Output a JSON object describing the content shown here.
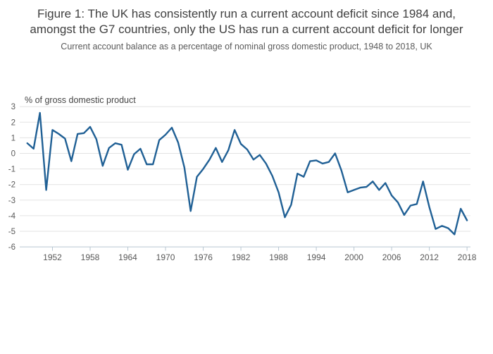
{
  "header": {
    "title": "Figure 1: The UK has consistently run a current account deficit since 1984 and, amongst the G7 countries, only the US has run a current account deficit for longer",
    "subtitle": "Current account balance as a percentage of nominal gross domestic product, 1948 to 2018, UK"
  },
  "chart_data": {
    "type": "line",
    "title": "Figure 1: The UK has consistently run a current account deficit since 1984 and, amongst the G7 countries, only the US has run a current account deficit for longer",
    "subtitle": "Current account balance as a percentage of nominal gross domestic product, 1948 to 2018, UK",
    "axis_title": "% of gross domestic product",
    "series_name": "UK current account balance as % of nominal GDP",
    "x": [
      1948,
      1949,
      1950,
      1951,
      1952,
      1953,
      1954,
      1955,
      1956,
      1957,
      1958,
      1959,
      1960,
      1961,
      1962,
      1963,
      1964,
      1965,
      1966,
      1967,
      1968,
      1969,
      1970,
      1971,
      1972,
      1973,
      1974,
      1975,
      1976,
      1977,
      1978,
      1979,
      1980,
      1981,
      1982,
      1983,
      1984,
      1985,
      1986,
      1987,
      1988,
      1989,
      1990,
      1991,
      1992,
      1993,
      1994,
      1995,
      1996,
      1997,
      1998,
      1999,
      2000,
      2001,
      2002,
      2003,
      2004,
      2005,
      2006,
      2007,
      2008,
      2009,
      2010,
      2011,
      2012,
      2013,
      2014,
      2015,
      2016,
      2017,
      2018
    ],
    "values": [
      0.65,
      0.3,
      2.6,
      -2.35,
      1.5,
      1.25,
      0.95,
      -0.5,
      1.25,
      1.3,
      1.7,
      0.9,
      -0.8,
      0.35,
      0.65,
      0.55,
      -1.05,
      -0.05,
      0.3,
      -0.7,
      -0.7,
      0.85,
      1.2,
      1.65,
      0.7,
      -0.9,
      -3.7,
      -1.5,
      -1.0,
      -0.4,
      0.35,
      -0.55,
      0.2,
      1.5,
      0.6,
      0.25,
      -0.4,
      -0.1,
      -0.65,
      -1.45,
      -2.5,
      -4.1,
      -3.3,
      -1.3,
      -1.5,
      -0.5,
      -0.45,
      -0.65,
      -0.55,
      0.0,
      -1.1,
      -2.5,
      -2.35,
      -2.2,
      -2.15,
      -1.8,
      -2.35,
      -1.9,
      -2.7,
      -3.15,
      -3.95,
      -3.35,
      -3.25,
      -1.8,
      -3.45,
      -4.85,
      -4.65,
      -4.8,
      -5.2,
      -3.55,
      -4.3
    ],
    "ylim": [
      -6,
      3
    ],
    "yticks": [
      3,
      2,
      1,
      0,
      -1,
      -2,
      -3,
      -4,
      -5,
      -6
    ],
    "xticks": [
      1952,
      1958,
      1964,
      1970,
      1976,
      1982,
      1988,
      1994,
      2000,
      2006,
      2012,
      2018
    ],
    "grid": "horizontal",
    "legend": "none",
    "colors": {
      "line": "#206095",
      "grid": "#e3e3e3",
      "axis": "#b9c7d2",
      "title_text": "#404040",
      "subtitle_text": "#595959",
      "tick_text": "#595959"
    }
  }
}
